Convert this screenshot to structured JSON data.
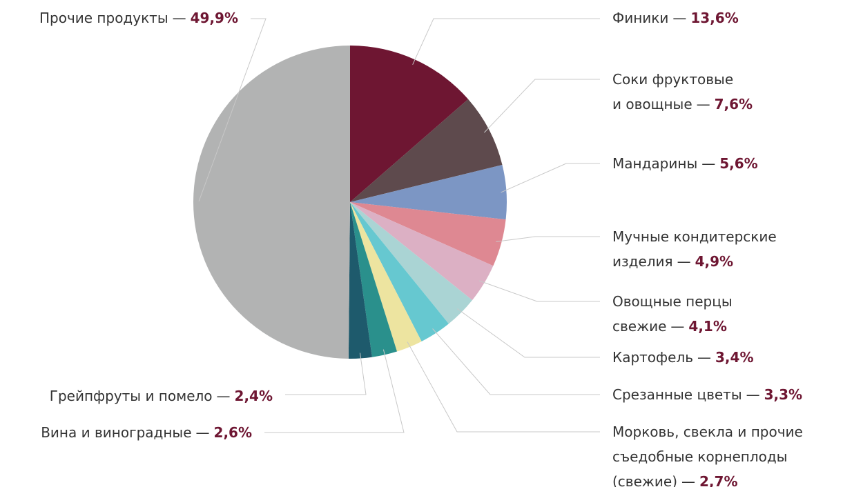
{
  "chart_data": {
    "type": "pie",
    "categories": [
      "Финики",
      "Соки фруктовые\nи овощные",
      "Мандарины",
      "Мучные кондитерские\nизделия",
      "Овощные перцы\nсвежие",
      "Картофель",
      "Срезанные цветы",
      "Морковь, свекла и прочие\nсъедобные корнеплоды\n(свежие)",
      "Вина и виноградные",
      "Грейпфруты и помело",
      "Прочие продукты"
    ],
    "values": [
      13.6,
      7.6,
      5.6,
      4.9,
      4.1,
      3.4,
      3.3,
      2.7,
      2.6,
      2.4,
      49.9
    ],
    "value_labels": [
      "13,6%",
      "7,6%",
      "5,6%",
      "4,9%",
      "4,1%",
      "3,4%",
      "3,3%",
      "2,7%",
      "2,6%",
      "2,4%",
      "49,9%"
    ],
    "separator": "—",
    "colors": [
      "#6e1632",
      "#5e4a4d",
      "#7c96c4",
      "#de8892",
      "#dcb0c4",
      "#aad4d4",
      "#66c8d0",
      "#ede4a0",
      "#2a908c",
      "#1e5a6c",
      "#b2b3b3"
    ],
    "value_label_color": "#6e1632"
  }
}
